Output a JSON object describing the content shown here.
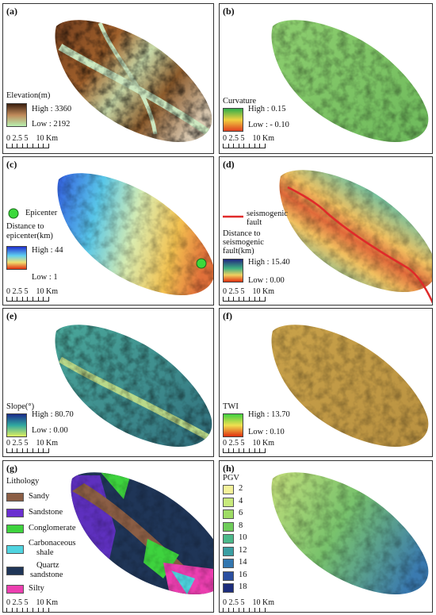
{
  "panels": {
    "a": {
      "label": "(a)",
      "legend_title": "Elevation(m)",
      "high": "High : 3360",
      "low": "Low : 2192"
    },
    "b": {
      "label": "(b)",
      "legend_title": "Curvature",
      "high": "High : 0.15",
      "low": "Low : - 0.10"
    },
    "c": {
      "label": "(c)",
      "epicenter": "Epicenter",
      "legend_title_1": "Distance to",
      "legend_title_2": "epicenter(km)",
      "high": "High : 44",
      "low": "Low : 1"
    },
    "d": {
      "label": "(d)",
      "fault": "seismogenic",
      "fault_2": "fault",
      "legend_title_1": "Distance to",
      "legend_title_2": "seismogenic",
      "legend_title_3": "fault(km)",
      "high": "High : 15.40",
      "low": "Low : 0.00"
    },
    "e": {
      "label": "(e)",
      "legend_title": "Slope(°)",
      "high": "High : 80.70",
      "low": "Low : 0.00"
    },
    "f": {
      "label": "(f)",
      "legend_title": "TWI",
      "high": "High : 13.70",
      "low": "Low : 0.10"
    },
    "g": {
      "label": "(g)",
      "legend_title": "Lithology",
      "items": [
        "Sandy",
        "Sandstone",
        "Conglomerate",
        "Carbonaceous",
        "shale",
        "Quartz",
        "sandstone",
        "Silty"
      ]
    },
    "h": {
      "label": "(h)",
      "legend_title": "PGV",
      "items": [
        "2",
        "4",
        "6",
        "8",
        "10",
        "12",
        "14",
        "16",
        "18"
      ]
    }
  },
  "scalebar": {
    "ticks": "0 2.5 5",
    "end": "10 Km"
  },
  "colors": {
    "lith": [
      "#8b5e45",
      "#6a2fd0",
      "#3ed33e",
      "#4fd4e0",
      "#1f3557",
      "#ec3fb0"
    ],
    "pgv": [
      "#f4f29a",
      "#c8ea7c",
      "#9edc64",
      "#6fcd5a",
      "#4cb98a",
      "#3a9ea2",
      "#3377b0",
      "#2b4fa0",
      "#1d2e7c"
    ],
    "fault": "#e02a2a",
    "epicenter": "#3bd93b"
  }
}
